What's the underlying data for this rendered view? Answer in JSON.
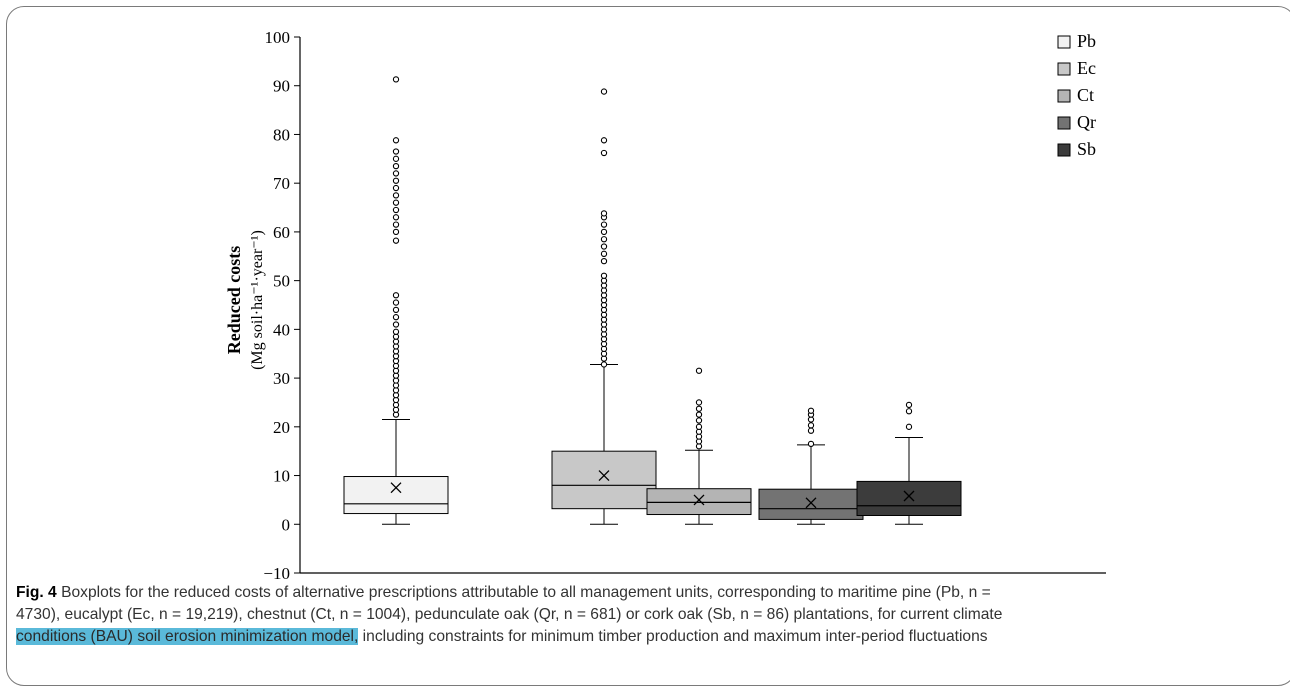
{
  "chart_data": {
    "type": "box",
    "ylabel": "Reduced costs",
    "ylabel_units": "(Mg soil·ha⁻¹·year⁻¹)",
    "ylim": [
      -10,
      100
    ],
    "yticks": [
      "100",
      "90",
      "80",
      "70",
      "60",
      "50",
      "40",
      "30",
      "20",
      "10",
      "0",
      "−10"
    ],
    "ytick_values": [
      100,
      90,
      80,
      70,
      60,
      50,
      40,
      30,
      20,
      10,
      0,
      -10
    ],
    "legend_position": "top-right",
    "series": [
      {
        "name": "Pb",
        "color": "#f2f2f2",
        "min": 0,
        "q1": 2.2,
        "median": 4.2,
        "q3": 9.8,
        "whisker_max": 21.5,
        "mean": 7.5,
        "outliers": [
          22.5,
          23.5,
          24.5,
          25.5,
          26.5,
          27.5,
          28.5,
          29.5,
          30.5,
          31.5,
          32.5,
          33.5,
          34.5,
          35.5,
          36.5,
          37.5,
          38.5,
          39.5,
          41,
          42.5,
          44,
          45.5,
          47,
          58.2,
          60,
          61.5,
          63,
          64.5,
          66,
          67.5,
          69,
          70.5,
          72,
          73.5,
          75,
          76.5,
          78.8,
          91.3
        ]
      },
      {
        "name": "Ec",
        "color": "#c8c8c8",
        "min": 0,
        "q1": 3.2,
        "median": 8,
        "q3": 15,
        "whisker_max": 32.8,
        "mean": 10,
        "outliers": [
          32.8,
          34,
          35,
          36,
          37,
          38,
          39,
          40,
          41,
          42,
          43,
          44,
          45,
          46,
          47,
          48,
          49,
          50,
          51,
          54,
          55.5,
          57,
          58.5,
          60,
          61.5,
          63,
          63.8,
          76.2,
          78.8,
          88.8
        ]
      },
      {
        "name": "Ct",
        "color": "#b4b4b4",
        "min": 0,
        "q1": 2,
        "median": 4.5,
        "q3": 7.3,
        "whisker_max": 15.2,
        "mean": 5,
        "outliers": [
          16,
          17,
          18,
          19,
          20,
          21.3,
          22.5,
          23.7,
          25,
          31.5
        ]
      },
      {
        "name": "Qr",
        "color": "#737373",
        "min": 0,
        "q1": 1,
        "median": 3.2,
        "q3": 7.2,
        "whisker_max": 16.3,
        "mean": 4.4,
        "outliers": [
          16.5,
          19.2,
          20.3,
          21.5,
          22.5,
          23.3
        ]
      },
      {
        "name": "Sb",
        "color": "#3c3c3c",
        "min": 0,
        "q1": 1.8,
        "median": 3.8,
        "q3": 8.8,
        "whisker_max": 17.8,
        "mean": 5.8,
        "outliers": [
          20,
          23.2,
          24.5
        ]
      }
    ]
  },
  "caption": {
    "label": "Fig. 4",
    "line1": "Boxplots for the reduced costs of alternative prescriptions attributable to all management units, corresponding to maritime pine (Pb, n =",
    "line2": "4730), eucalypt (Ec, n = 19,219), chestnut (Ct, n = 1004), pedunculate oak (Qr, n = 681) or cork oak (Sb, n = 86) plantations, for current climate",
    "line3_highlight": "conditions (BAU) soil erosion minimization model,",
    "line3_rest": " including constraints for minimum timber production and maximum inter-period fluctuations"
  },
  "colors": {
    "highlight": "#5ab9d9",
    "border": "#7a7a7a"
  }
}
